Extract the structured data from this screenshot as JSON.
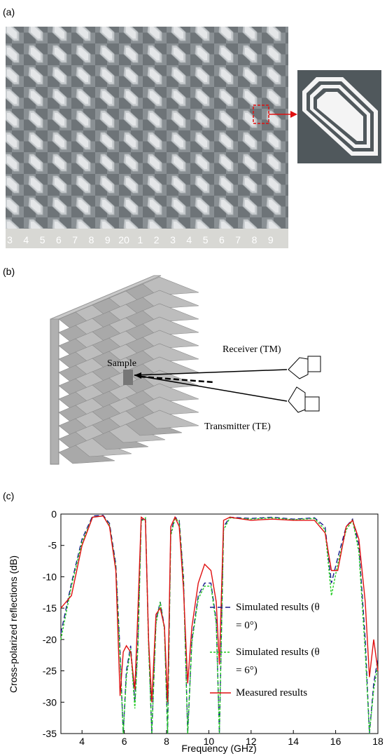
{
  "panels": {
    "a": {
      "label": "(a)",
      "ruler": [
        "3",
        "4",
        "5",
        "6",
        "7",
        "8",
        "9",
        "20",
        "1",
        "2",
        "3",
        "4",
        "5",
        "6",
        "7",
        "8",
        "9"
      ]
    },
    "b": {
      "label": "(b)",
      "sample": "Sample",
      "receiver": "Receiver (TM)",
      "transmitter": "Transmitter (TE)"
    },
    "c": {
      "label": "(c)"
    }
  },
  "chart_data": {
    "type": "line",
    "x_label": "Frequency (GHz)",
    "y_label": "Cross-polarized reflections (dB)",
    "x": [
      3,
      3.5,
      4,
      4.5,
      5,
      5.3,
      5.6,
      5.8,
      5.95,
      6.1,
      6.3,
      6.5,
      6.65,
      6.8,
      7.0,
      7.15,
      7.3,
      7.5,
      7.7,
      7.9,
      8.05,
      8.2,
      8.4,
      8.6,
      8.8,
      9.0,
      9.2,
      9.5,
      9.8,
      10.1,
      10.35,
      10.5,
      10.7,
      11,
      12,
      13,
      14,
      15,
      15.5,
      15.8,
      16.1,
      16.5,
      16.8,
      17.1,
      17.4,
      17.6,
      17.8,
      18
    ],
    "series": [
      {
        "name": "Simulated results (θ = 0°)",
        "color": "#1a1a8c",
        "dash": "7,4",
        "values": [
          -19,
          -11,
          -4,
          -0.3,
          -0.2,
          -1.5,
          -8,
          -22,
          -35,
          -25,
          -21,
          -30,
          -20,
          -1,
          -0.5,
          -20,
          -35,
          -17,
          -14,
          -18,
          -35,
          -3,
          -0.5,
          -1,
          -10,
          -35,
          -20,
          -13,
          -11,
          -11,
          -17,
          -35,
          -2,
          -0.5,
          -0.7,
          -0.5,
          -0.8,
          -0.6,
          -2,
          -11,
          -7,
          -2,
          -0.8,
          -5,
          -20,
          -35,
          -27,
          -23
        ]
      },
      {
        "name": "Simulated results (θ = 6°)",
        "color": "#22cc22",
        "dash": "3,2",
        "values": [
          -20,
          -11.5,
          -4.5,
          -0.5,
          -0.3,
          -1.8,
          -8.5,
          -23,
          -35,
          -26,
          -21.5,
          -31,
          -21,
          -1.2,
          -0.6,
          -21,
          -35,
          -17.5,
          -14,
          -18.5,
          -35,
          -3.5,
          -0.7,
          -1.2,
          -10.5,
          -35,
          -20.5,
          -13.5,
          -11.5,
          -11.5,
          -17.5,
          -35,
          -2.5,
          -0.6,
          -0.8,
          -0.6,
          -0.9,
          -0.7,
          -2.5,
          -13,
          -8,
          -2.5,
          -1,
          -6,
          -22,
          -35,
          -28,
          -24
        ]
      },
      {
        "name": "Measured results",
        "color": "#e01010",
        "dash": "",
        "values": [
          -15,
          -13,
          -5,
          -0.5,
          -0.3,
          -2,
          -9,
          -29,
          -22,
          -21,
          -22,
          -28,
          -15,
          -0.5,
          -1,
          -20,
          -30,
          -16,
          -15,
          -18,
          -30,
          -2,
          -0.5,
          -2,
          -12,
          -27,
          -18,
          -11,
          -8,
          -9,
          -14,
          -24,
          -1,
          -0.5,
          -1,
          -0.8,
          -1,
          -1,
          -3,
          -9,
          -9,
          -2,
          -1,
          -4,
          -14,
          -26,
          -20,
          -25
        ]
      }
    ],
    "xlim": [
      3,
      18
    ],
    "xticks": [
      4,
      6,
      8,
      10,
      12,
      14,
      16,
      18
    ],
    "ylim": [
      -35,
      0
    ],
    "yticks": [
      0,
      -5,
      -10,
      -15,
      -20,
      -25,
      -30,
      -35
    ]
  }
}
